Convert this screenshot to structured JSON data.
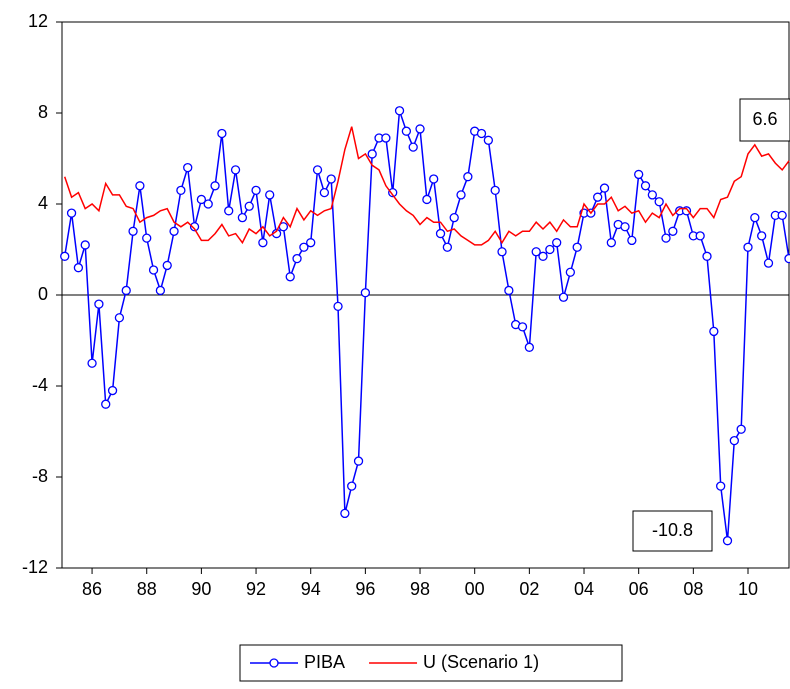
{
  "chart_data": {
    "type": "line",
    "x": [
      1985,
      1985.25,
      1985.5,
      1985.75,
      1986,
      1986.25,
      1986.5,
      1986.75,
      1987,
      1987.25,
      1987.5,
      1987.75,
      1988,
      1988.25,
      1988.5,
      1988.75,
      1989,
      1989.25,
      1989.5,
      1989.75,
      1990,
      1990.25,
      1990.5,
      1990.75,
      1991,
      1991.25,
      1991.5,
      1991.75,
      1992,
      1992.25,
      1992.5,
      1992.75,
      1993,
      1993.25,
      1993.5,
      1993.75,
      1994,
      1994.25,
      1994.5,
      1994.75,
      1995,
      1995.25,
      1995.5,
      1995.75,
      1996,
      1996.25,
      1996.5,
      1996.75,
      1997,
      1997.25,
      1997.5,
      1997.75,
      1998,
      1998.25,
      1998.5,
      1998.75,
      1999,
      1999.25,
      1999.5,
      1999.75,
      2000,
      2000.25,
      2000.5,
      2000.75,
      2001,
      2001.25,
      2001.5,
      2001.75,
      2002,
      2002.25,
      2002.5,
      2002.75,
      2003,
      2003.25,
      2003.5,
      2003.75,
      2004,
      2004.25,
      2004.5,
      2004.75,
      2005,
      2005.25,
      2005.5,
      2005.75,
      2006,
      2006.25,
      2006.5,
      2006.75,
      2007,
      2007.25,
      2007.5,
      2007.75,
      2008,
      2008.25,
      2008.5,
      2008.75,
      2009,
      2009.25,
      2009.5,
      2009.75,
      2010,
      2010.25,
      2010.5,
      2010.75,
      2011,
      2011.25,
      2011.5
    ],
    "series": [
      {
        "name": "PIBA",
        "color": "#0000ff",
        "marker": "circle",
        "values": [
          1.7,
          3.6,
          1.2,
          2.2,
          -3.0,
          -0.4,
          -4.8,
          -4.2,
          -1.0,
          0.2,
          2.8,
          4.8,
          2.5,
          1.1,
          0.2,
          1.3,
          2.8,
          4.6,
          5.6,
          3.0,
          4.2,
          4.0,
          4.8,
          7.1,
          3.7,
          5.5,
          3.4,
          3.9,
          4.6,
          2.3,
          4.4,
          2.7,
          3.0,
          0.8,
          1.6,
          2.1,
          2.3,
          5.5,
          4.5,
          5.1,
          -0.5,
          -9.6,
          -8.4,
          -7.3,
          0.1,
          6.2,
          6.9,
          6.9,
          4.5,
          8.1,
          7.2,
          6.5,
          7.3,
          4.2,
          5.1,
          2.7,
          2.1,
          3.4,
          4.4,
          5.2,
          7.2,
          7.1,
          6.8,
          4.6,
          1.9,
          0.2,
          -1.3,
          -1.4,
          -2.3,
          1.9,
          1.7,
          2.0,
          2.3,
          -0.1,
          1.0,
          2.1,
          3.6,
          3.6,
          4.3,
          4.7,
          2.3,
          3.1,
          3.0,
          2.4,
          5.3,
          4.8,
          4.4,
          4.1,
          2.5,
          2.8,
          3.7,
          3.7,
          2.6,
          2.6,
          1.7,
          -1.6,
          -8.4,
          -10.8,
          -6.4,
          -5.9,
          2.1,
          3.4,
          2.6,
          1.4,
          3.5,
          3.5,
          1.6
        ]
      },
      {
        "name": "U (Scenario 1)",
        "color": "#ff0000",
        "values": [
          5.2,
          4.3,
          4.5,
          3.8,
          4.0,
          3.7,
          4.9,
          4.4,
          4.4,
          3.9,
          3.8,
          3.2,
          3.4,
          3.5,
          3.7,
          3.8,
          3.2,
          3.0,
          3.2,
          2.9,
          2.4,
          2.4,
          2.7,
          3.1,
          2.6,
          2.7,
          2.3,
          2.9,
          2.7,
          3.0,
          2.6,
          2.8,
          3.4,
          3.0,
          3.8,
          3.3,
          3.7,
          3.5,
          3.7,
          3.8,
          5.0,
          6.4,
          7.4,
          6.0,
          6.2,
          5.7,
          5.5,
          4.8,
          4.4,
          4.0,
          3.7,
          3.5,
          3.1,
          3.4,
          3.2,
          3.2,
          2.8,
          2.9,
          2.6,
          2.4,
          2.2,
          2.2,
          2.4,
          2.8,
          2.3,
          2.8,
          2.6,
          2.8,
          2.8,
          3.2,
          2.9,
          3.2,
          2.8,
          3.3,
          3.0,
          3.0,
          4.0,
          3.6,
          4.0,
          4.0,
          4.3,
          3.7,
          3.9,
          3.6,
          3.7,
          3.2,
          3.6,
          3.4,
          4.0,
          3.5,
          3.8,
          3.8,
          3.4,
          3.8,
          3.8,
          3.4,
          4.2,
          4.3,
          5.0,
          5.2,
          6.2,
          6.6,
          6.1,
          6.2,
          5.8,
          5.5,
          5.9
        ]
      }
    ],
    "annotations": [
      "6.6",
      "-10.8"
    ],
    "xlim": [
      1984.9,
      2011.5
    ],
    "xticks": [
      {
        "value": 1986,
        "label": "86"
      },
      {
        "value": 1988,
        "label": "88"
      },
      {
        "value": 1990,
        "label": "90"
      },
      {
        "value": 1992,
        "label": "92"
      },
      {
        "value": 1994,
        "label": "94"
      },
      {
        "value": 1996,
        "label": "96"
      },
      {
        "value": 1998,
        "label": "98"
      },
      {
        "value": 2000,
        "label": "00"
      },
      {
        "value": 2002,
        "label": "02"
      },
      {
        "value": 2004,
        "label": "04"
      },
      {
        "value": 2006,
        "label": "06"
      },
      {
        "value": 2008,
        "label": "08"
      },
      {
        "value": 2010,
        "label": "10"
      }
    ],
    "ylim": [
      -12,
      12
    ],
    "yticks": [
      -12,
      -8,
      -4,
      0,
      4,
      8,
      12
    ],
    "zero_line": true,
    "legend": "bottom"
  }
}
